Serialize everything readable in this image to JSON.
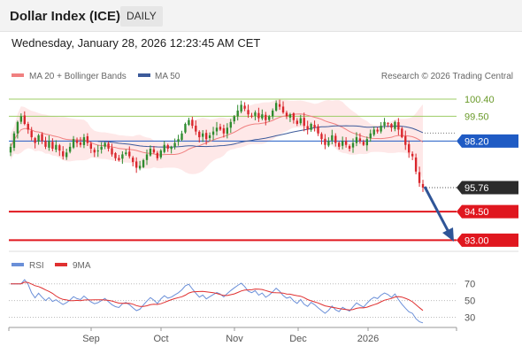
{
  "header": {
    "title": "Dollar Index (ICE)",
    "period": "DAILY"
  },
  "datetime": "Wednesday, January 28, 2026 12:23:45 AM CET",
  "legend": {
    "ma20_label": "MA 20 + Bollinger Bands",
    "ma50_label": "MA 50",
    "credit": "Research © 2026 Trading Central",
    "rsi_label": "RSI",
    "ma9_label": "9MA"
  },
  "colors": {
    "candle_up": "#2e8b2e",
    "candle_down": "#d9262c",
    "ma20": "#f08080",
    "bollinger_fill": "#fde0e0",
    "ma50": "#3c5a9a",
    "green_level": "#9ccc65",
    "blue_level": "#1f5bc4",
    "red_level": "#e0171f",
    "current": "#2b2b2b",
    "rsi": "#6a8fd8",
    "rsi_ma": "#e03030",
    "arrow": "#2f5597"
  },
  "chart_data": [
    {
      "type": "candlestick",
      "title": "Dollar Index (ICE)",
      "ylim": [
        92.6,
        101.05
      ],
      "x_ticks": [
        "Sep",
        "Oct",
        "Nov",
        "Dec",
        "2026"
      ],
      "levels": [
        {
          "value": 100.4,
          "label": "100.40",
          "style": "green-line"
        },
        {
          "value": 99.5,
          "label": "99.50",
          "style": "green-line"
        },
        {
          "value": 98.2,
          "label": "98.20",
          "style": "blue-box"
        },
        {
          "value": 95.76,
          "label": "95.76",
          "style": "current-box"
        },
        {
          "value": 94.5,
          "label": "94.50",
          "style": "red-box"
        },
        {
          "value": 93.0,
          "label": "93.00",
          "style": "red-box"
        }
      ],
      "closes": [
        97.9,
        98.6,
        99.2,
        99.5,
        99.1,
        98.8,
        98.4,
        98.1,
        98.5,
        98.2,
        97.9,
        98.2,
        97.8,
        98.0,
        97.7,
        97.4,
        97.6,
        97.9,
        98.3,
        98.1,
        98.0,
        98.4,
        98.1,
        97.8,
        97.6,
        97.7,
        97.9,
        98.1,
        97.8,
        97.5,
        97.3,
        97.2,
        97.5,
        97.6,
        97.4,
        97.1,
        96.8,
        96.9,
        97.2,
        97.5,
        97.8,
        97.6,
        97.3,
        97.7,
        98.0,
        97.8,
        97.9,
        98.1,
        98.3,
        98.6,
        99.1,
        99.3,
        99.0,
        98.7,
        98.4,
        98.6,
        98.3,
        98.5,
        98.7,
        98.9,
        98.8,
        98.6,
        98.9,
        99.2,
        99.5,
        99.8,
        100.1,
        99.9,
        99.6,
        99.5,
        99.7,
        99.4,
        99.6,
        99.3,
        99.5,
        99.8,
        100.2,
        100.0,
        99.7,
        99.5,
        99.6,
        99.3,
        99.1,
        99.4,
        99.0,
        98.8,
        99.1,
        98.9,
        98.6,
        98.3,
        98.0,
        98.2,
        98.5,
        98.1,
        97.9,
        98.2,
        98.0,
        97.8,
        98.1,
        98.4,
        98.2,
        98.0,
        98.3,
        98.6,
        98.8,
        98.7,
        99.0,
        99.2,
        99.1,
        98.9,
        99.2,
        98.8,
        98.4,
        98.0,
        97.6,
        97.4,
        96.6,
        96.0,
        95.76
      ],
      "ma50_start": 25,
      "rsi": {
        "ylim": [
          20,
          75
        ],
        "ticks": [
          70,
          50,
          30
        ],
        "series": [
          "RSI",
          "9MA"
        ]
      }
    }
  ]
}
